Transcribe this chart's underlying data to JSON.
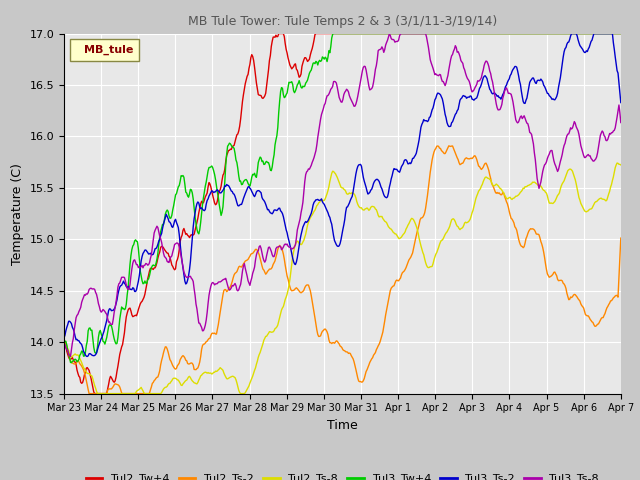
{
  "title": "MB Tule Tower: Tule Temps 2 & 3 (3/1/11-3/19/14)",
  "xlabel": "Time",
  "ylabel": "Temperature (C)",
  "ylim": [
    13.5,
    17.0
  ],
  "xlim": [
    0,
    15
  ],
  "yticks": [
    13.5,
    14.0,
    14.5,
    15.0,
    15.5,
    16.0,
    16.5,
    17.0
  ],
  "xtick_labels": [
    "Mar 23",
    "Mar 24",
    "Mar 25",
    "Mar 26",
    "Mar 27",
    "Mar 28",
    "Mar 29",
    "Mar 30",
    "Mar 31",
    "Apr 1",
    "Apr 2",
    "Apr 3",
    "Apr 4",
    "Apr 5",
    "Apr 6",
    "Apr 7"
  ],
  "fig_bg_color": "#c8c8c8",
  "plot_bg_color": "#e8e8e8",
  "legend_label": "MB_tule",
  "series": [
    {
      "name": "Tul2_Tw+4",
      "color": "#dd0000"
    },
    {
      "name": "Tul2_Ts-2",
      "color": "#ff8800"
    },
    {
      "name": "Tul2_Ts-8",
      "color": "#dddd00"
    },
    {
      "name": "Tul3_Tw+4",
      "color": "#00cc00"
    },
    {
      "name": "Tul3_Ts-2",
      "color": "#0000cc"
    },
    {
      "name": "Tul3_Ts-8",
      "color": "#aa00aa"
    }
  ]
}
